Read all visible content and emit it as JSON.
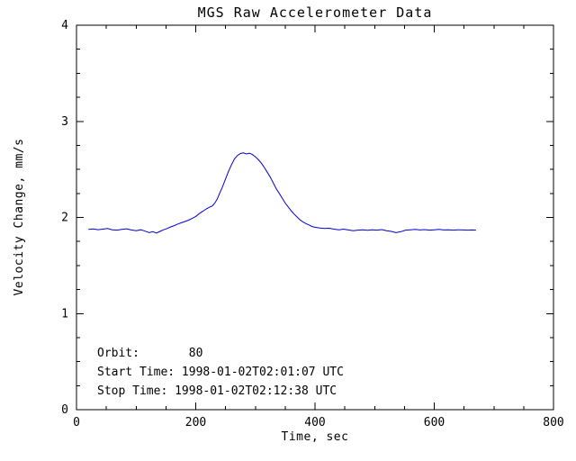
{
  "page": {
    "background": "#ffffff"
  },
  "chart_data": {
    "type": "line",
    "title": "MGS Raw Accelerometer Data",
    "xlabel": "Time, sec",
    "ylabel": "Velocity Change, mm/s",
    "xlim": [
      0,
      800
    ],
    "ylim": [
      0,
      4
    ],
    "x_ticks": [
      0,
      200,
      400,
      600,
      800
    ],
    "y_ticks": [
      0,
      1,
      2,
      3,
      4
    ],
    "x_minor_step": 50,
    "y_minor_step": 0.25,
    "grid": false,
    "legend": "none",
    "axis_color": "#000000",
    "line_color": "#0000cd",
    "annotations": {
      "orbit": "Orbit:       80",
      "start": "Start Time: 1998-01-02T02:01:07 UTC",
      "stop": "Stop Time: 1998-01-02T02:12:38 UTC"
    },
    "series": [
      {
        "name": "velocity-change",
        "color": "#0000cd",
        "points": [
          [
            20,
            1.875
          ],
          [
            28,
            1.88
          ],
          [
            36,
            1.873
          ],
          [
            44,
            1.878
          ],
          [
            52,
            1.885
          ],
          [
            60,
            1.872
          ],
          [
            68,
            1.868
          ],
          [
            76,
            1.875
          ],
          [
            84,
            1.882
          ],
          [
            92,
            1.87
          ],
          [
            100,
            1.862
          ],
          [
            108,
            1.872
          ],
          [
            115,
            1.858
          ],
          [
            122,
            1.843
          ],
          [
            128,
            1.852
          ],
          [
            134,
            1.838
          ],
          [
            140,
            1.855
          ],
          [
            146,
            1.872
          ],
          [
            152,
            1.885
          ],
          [
            158,
            1.902
          ],
          [
            164,
            1.915
          ],
          [
            170,
            1.932
          ],
          [
            176,
            1.945
          ],
          [
            182,
            1.958
          ],
          [
            188,
            1.972
          ],
          [
            194,
            1.99
          ],
          [
            200,
            2.01
          ],
          [
            206,
            2.04
          ],
          [
            212,
            2.065
          ],
          [
            218,
            2.09
          ],
          [
            224,
            2.11
          ],
          [
            228,
            2.12
          ],
          [
            232,
            2.15
          ],
          [
            236,
            2.19
          ],
          [
            240,
            2.25
          ],
          [
            245,
            2.32
          ],
          [
            250,
            2.4
          ],
          [
            255,
            2.48
          ],
          [
            260,
            2.55
          ],
          [
            265,
            2.61
          ],
          [
            270,
            2.645
          ],
          [
            275,
            2.665
          ],
          [
            280,
            2.672
          ],
          [
            285,
            2.66
          ],
          [
            290,
            2.668
          ],
          [
            295,
            2.655
          ],
          [
            300,
            2.63
          ],
          [
            305,
            2.6
          ],
          [
            310,
            2.565
          ],
          [
            315,
            2.52
          ],
          [
            320,
            2.47
          ],
          [
            325,
            2.42
          ],
          [
            330,
            2.36
          ],
          [
            335,
            2.3
          ],
          [
            340,
            2.25
          ],
          [
            345,
            2.2
          ],
          [
            350,
            2.15
          ],
          [
            355,
            2.11
          ],
          [
            360,
            2.07
          ],
          [
            365,
            2.035
          ],
          [
            370,
            2.005
          ],
          [
            375,
            1.975
          ],
          [
            380,
            1.952
          ],
          [
            385,
            1.935
          ],
          [
            390,
            1.922
          ],
          [
            395,
            1.905
          ],
          [
            400,
            1.898
          ],
          [
            408,
            1.89
          ],
          [
            416,
            1.885
          ],
          [
            424,
            1.888
          ],
          [
            432,
            1.878
          ],
          [
            440,
            1.872
          ],
          [
            448,
            1.878
          ],
          [
            456,
            1.87
          ],
          [
            464,
            1.862
          ],
          [
            472,
            1.868
          ],
          [
            480,
            1.872
          ],
          [
            488,
            1.866
          ],
          [
            496,
            1.872
          ],
          [
            504,
            1.868
          ],
          [
            512,
            1.874
          ],
          [
            520,
            1.862
          ],
          [
            528,
            1.855
          ],
          [
            536,
            1.842
          ],
          [
            544,
            1.852
          ],
          [
            552,
            1.868
          ],
          [
            560,
            1.872
          ],
          [
            568,
            1.876
          ],
          [
            576,
            1.87
          ],
          [
            584,
            1.874
          ],
          [
            592,
            1.868
          ],
          [
            600,
            1.872
          ],
          [
            608,
            1.876
          ],
          [
            616,
            1.87
          ],
          [
            624,
            1.872
          ],
          [
            632,
            1.868
          ],
          [
            640,
            1.872
          ],
          [
            648,
            1.87
          ],
          [
            656,
            1.868
          ],
          [
            664,
            1.87
          ],
          [
            670,
            1.868
          ]
        ]
      }
    ]
  }
}
